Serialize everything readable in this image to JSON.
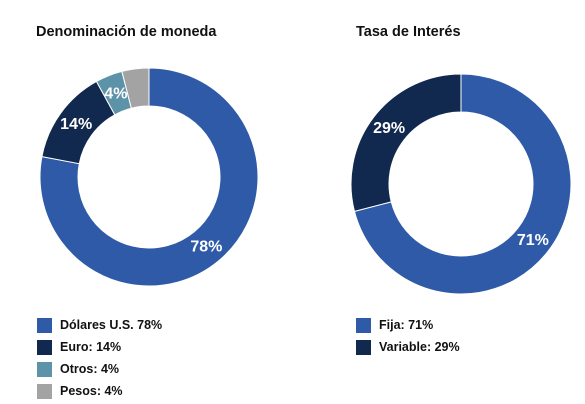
{
  "chart_data": [
    {
      "type": "pie",
      "title": "Denominación de moneda",
      "categories": [
        "Dólares U.S.",
        "Euro",
        "Otros",
        "Pesos"
      ],
      "values": [
        78,
        14,
        4,
        4
      ],
      "data_labels": [
        "78%",
        "14%",
        "4%",
        ""
      ],
      "legend_labels": [
        "Dólares U.S. 78%",
        "Euro: 14%",
        "Otros: 4%",
        "Pesos: 4%"
      ],
      "colors": [
        "#2e5aa7",
        "#12294f",
        "#5d93a9",
        "#a3a3a3"
      ],
      "legend_position": "bottom-left"
    },
    {
      "type": "pie",
      "title": "Tasa de Interés",
      "categories": [
        "Fija",
        "Variable"
      ],
      "values": [
        71,
        29
      ],
      "data_labels": [
        "71%",
        "29%"
      ],
      "legend_labels": [
        "Fija: 71%",
        "Variable: 29%"
      ],
      "colors": [
        "#2e5aa7",
        "#12294f"
      ],
      "legend_position": "bottom-left"
    }
  ]
}
